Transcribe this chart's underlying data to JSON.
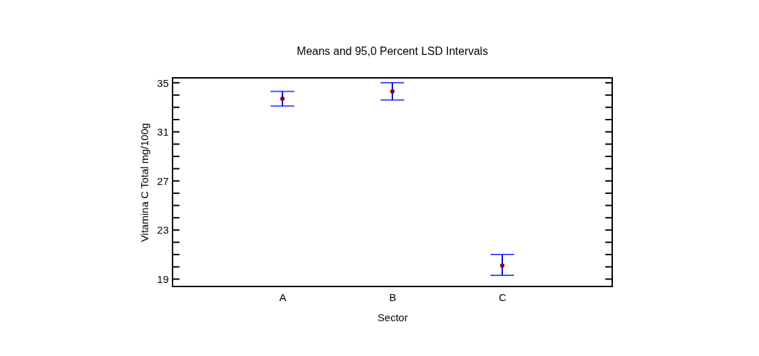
{
  "chart_data": {
    "type": "scatter",
    "title": "Means and 95,0 Percent LSD Intervals",
    "xlabel": "Sector",
    "ylabel": "Vitamina C Total mg/100g",
    "categories": [
      "A",
      "B",
      "C"
    ],
    "series": [
      {
        "color": "#8b0000",
        "values": [
          33.7,
          34.3,
          20.1
        ],
        "errors": [
          [
            33.1,
            34.3
          ],
          [
            33.6,
            35.0
          ],
          [
            19.3,
            21.0
          ]
        ]
      }
    ],
    "ylim": [
      18.4,
      35.4
    ],
    "yticks": [
      19,
      {
        "value": 20,
        "label": null
      },
      {
        "value": 21,
        "label": null
      },
      {
        "value": 22,
        "label": null
      },
      23,
      {
        "value": 24,
        "label": null
      },
      {
        "value": 25,
        "label": null
      },
      {
        "value": 26,
        "label": null
      },
      27,
      {
        "value": 28,
        "label": null
      },
      {
        "value": 29,
        "label": null
      },
      {
        "value": 30,
        "label": null
      },
      31,
      {
        "value": 32,
        "label": null
      },
      {
        "value": 33,
        "label": null
      },
      {
        "value": 34,
        "label": null
      },
      35
    ],
    "marker": "circle",
    "grid": false
  }
}
